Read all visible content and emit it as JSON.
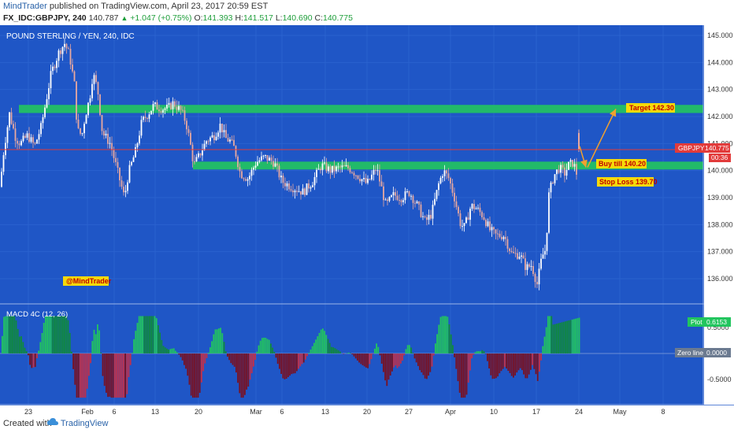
{
  "header": {
    "author": "MindTrader",
    "published_text": "published on TradingView.com, April 23, 2017 20:59 EST",
    "symbol": "FX_IDC:GBPJPY, 240",
    "last_price": "140.787",
    "change": "+1.047 (+0.75%)",
    "open_label": "O:",
    "open": "141.393",
    "high_label": "H:",
    "high": "141.517",
    "low_label": "L:",
    "low": "140.690",
    "close_label": "C:",
    "close": "140.775"
  },
  "main_pane": {
    "title": "POUND STERLING / YEN, 240, IDC",
    "watermark": "@MindTrader",
    "price_tag": {
      "symbol": "GBPJPY",
      "price": "140.775"
    },
    "countdown": "00:36",
    "annotations": {
      "target": "Target 142.30",
      "buy": "Buy till 140.20",
      "stop": "Stop Loss 139.70"
    }
  },
  "macd_pane": {
    "title": "MACD 4C (12, 26)",
    "plot_tag": {
      "label": "Plot",
      "value": "0.6153"
    },
    "zero_tag": {
      "label": "Zero line",
      "value": "0.0000"
    }
  },
  "footer": {
    "created_with": "Created with",
    "brand": "TradingView"
  },
  "colors": {
    "pane_bg": "#1f56c6",
    "zone_green": "#22c55e",
    "price_line": "#e23b3b",
    "annotation_bg": "#f5d90a",
    "annotation_text": "#c00000",
    "arrow": "#f0a030",
    "bull_candle": "#ffffff",
    "bear_candle": "#e8a8a0"
  },
  "chart_data": {
    "type": "candlestick",
    "y_ticks": [
      "145.000",
      "144.000",
      "143.000",
      "142.000",
      "141.000",
      "140.000",
      "139.000",
      "138.000",
      "137.000",
      "136.000"
    ],
    "y_range": [
      135.5,
      145.2
    ],
    "x_ticks": [
      "23",
      "Feb",
      "6",
      "13",
      "20",
      "Mar",
      "6",
      "13",
      "20",
      "27",
      "Apr",
      "10",
      "17",
      "24",
      "May",
      "8"
    ],
    "zones": [
      {
        "from": 142.13,
        "to": 142.43
      },
      {
        "from": 140.04,
        "to": 140.33
      }
    ],
    "current_price": 140.775,
    "target": 142.3,
    "buy": 140.2,
    "stop_loss": 139.7,
    "price_path": [
      [
        0,
        139.4
      ],
      [
        5,
        140.8
      ],
      [
        12,
        142.1
      ],
      [
        20,
        141.2
      ],
      [
        26,
        141.0
      ],
      [
        35,
        141.3
      ],
      [
        44,
        140.9
      ],
      [
        52,
        141.6
      ],
      [
        58,
        142.5
      ],
      [
        65,
        143.6
      ],
      [
        75,
        144.4
      ],
      [
        82,
        144.7
      ],
      [
        88,
        144.3
      ],
      [
        95,
        143.1
      ],
      [
        98,
        141.5
      ],
      [
        104,
        141.3
      ],
      [
        108,
        142.0
      ],
      [
        114,
        142.7
      ],
      [
        118,
        143.6
      ],
      [
        124,
        143.0
      ],
      [
        130,
        141.4
      ],
      [
        140,
        141.0
      ],
      [
        148,
        140.1
      ],
      [
        158,
        139.0
      ],
      [
        163,
        139.9
      ],
      [
        172,
        140.7
      ],
      [
        180,
        141.8
      ],
      [
        188,
        142.1
      ],
      [
        195,
        142.4
      ],
      [
        205,
        142.3
      ],
      [
        213,
        142.3
      ],
      [
        220,
        142.5
      ],
      [
        230,
        142.2
      ],
      [
        236,
        141.8
      ],
      [
        241,
        141.1
      ],
      [
        246,
        140.2
      ],
      [
        252,
        140.5
      ],
      [
        262,
        141.1
      ],
      [
        272,
        141.3
      ],
      [
        280,
        141.7
      ],
      [
        286,
        141.2
      ],
      [
        292,
        141.1
      ],
      [
        298,
        140.8
      ],
      [
        305,
        139.9
      ],
      [
        315,
        139.7
      ],
      [
        325,
        140.3
      ],
      [
        336,
        140.5
      ],
      [
        348,
        140.3
      ],
      [
        358,
        139.6
      ],
      [
        370,
        139.4
      ],
      [
        385,
        139.2
      ],
      [
        397,
        139.6
      ],
      [
        408,
        140.2
      ],
      [
        420,
        140.0
      ],
      [
        432,
        140.1
      ],
      [
        443,
        140.1
      ],
      [
        455,
        139.8
      ],
      [
        466,
        139.5
      ],
      [
        478,
        140.1
      ],
      [
        490,
        138.7
      ],
      [
        500,
        139.1
      ],
      [
        510,
        139.0
      ],
      [
        520,
        139.2
      ],
      [
        530,
        138.7
      ],
      [
        540,
        138.1
      ],
      [
        548,
        138.4
      ],
      [
        557,
        139.5
      ],
      [
        563,
        140.0
      ],
      [
        570,
        139.7
      ],
      [
        577,
        139.0
      ],
      [
        585,
        138.0
      ],
      [
        590,
        137.9
      ],
      [
        598,
        138.7
      ],
      [
        605,
        138.6
      ],
      [
        614,
        138.3
      ],
      [
        622,
        137.8
      ],
      [
        630,
        137.6
      ],
      [
        640,
        137.6
      ],
      [
        650,
        136.9
      ],
      [
        660,
        136.9
      ],
      [
        668,
        136.4
      ],
      [
        675,
        136.5
      ],
      [
        682,
        135.8
      ],
      [
        688,
        136.8
      ],
      [
        693,
        137.1
      ],
      [
        697,
        139.1
      ],
      [
        703,
        139.8
      ],
      [
        710,
        140.1
      ],
      [
        717,
        139.9
      ],
      [
        722,
        140.2
      ],
      [
        728,
        140.3
      ],
      [
        732,
        139.9
      ]
    ],
    "macd_peak": 0.6153,
    "macd_ticks": [
      "0.5000",
      "-0.5000"
    ]
  }
}
